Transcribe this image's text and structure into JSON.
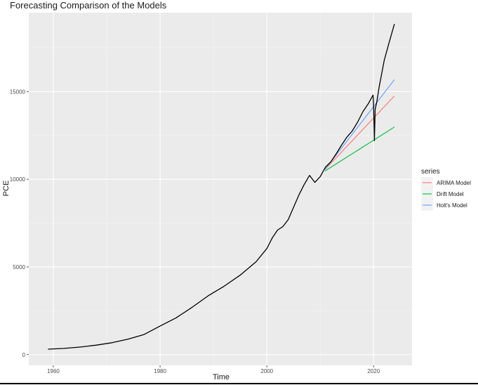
{
  "chart_data": {
    "type": "line",
    "title": "Forecasting Comparison of the Models",
    "xlabel": "Time",
    "ylabel": "PCE",
    "xlim": [
      1955.4,
      2027.2
    ],
    "ylim": [
      -610,
      19500
    ],
    "x_ticks": [
      1960,
      1980,
      2000,
      2020
    ],
    "x_tick_labels": [
      "1960",
      "1980",
      "2000",
      "2020"
    ],
    "y_ticks": [
      0,
      5000,
      10000,
      15000
    ],
    "y_tick_labels": [
      "0",
      "5000",
      "10000",
      "15000"
    ],
    "grid": true,
    "legend_position": "right",
    "legend_title": "series",
    "observed": {
      "color": "#000000",
      "points": [
        [
          1959,
          310
        ],
        [
          1962,
          355
        ],
        [
          1965,
          430
        ],
        [
          1968,
          540
        ],
        [
          1971,
          680
        ],
        [
          1974,
          880
        ],
        [
          1977,
          1150
        ],
        [
          1980,
          1630
        ],
        [
          1983,
          2100
        ],
        [
          1986,
          2700
        ],
        [
          1989,
          3350
        ],
        [
          1992,
          3900
        ],
        [
          1995,
          4530
        ],
        [
          1998,
          5300
        ],
        [
          2000,
          6050
        ],
        [
          2001,
          6650
        ],
        [
          2002,
          7100
        ],
        [
          2003,
          7300
        ],
        [
          2004,
          7700
        ],
        [
          2005,
          8400
        ],
        [
          2006,
          9100
        ],
        [
          2007,
          9700
        ],
        [
          2008,
          10220
        ],
        [
          2009,
          9820
        ],
        [
          2010,
          10150
        ],
        [
          2011,
          10700
        ],
        [
          2012,
          11000
        ],
        [
          2013,
          11450
        ],
        [
          2014,
          11950
        ],
        [
          2015,
          12400
        ],
        [
          2016,
          12750
        ],
        [
          2017,
          13250
        ],
        [
          2018,
          13850
        ],
        [
          2019,
          14300
        ],
        [
          2019.9,
          14800
        ],
        [
          2020.0,
          14300
        ],
        [
          2020.15,
          12200
        ],
        [
          2020.3,
          14000
        ],
        [
          2020.6,
          14400
        ],
        [
          2021,
          15200
        ],
        [
          2022,
          16800
        ],
        [
          2023,
          17900
        ],
        [
          2023.9,
          18850
        ]
      ]
    },
    "series": [
      {
        "name": "ARIMA Model",
        "color": "#F8766D",
        "points": [
          [
            2010.9,
            10550
          ],
          [
            2023.9,
            14750
          ]
        ]
      },
      {
        "name": "Drift Model",
        "color": "#00BA38",
        "points": [
          [
            2010.9,
            10470
          ],
          [
            2023.9,
            12980
          ]
        ]
      },
      {
        "name": "Holt's Model",
        "color": "#619CFF",
        "points": [
          [
            2010.9,
            10560
          ],
          [
            2023.9,
            15680
          ]
        ]
      }
    ]
  }
}
